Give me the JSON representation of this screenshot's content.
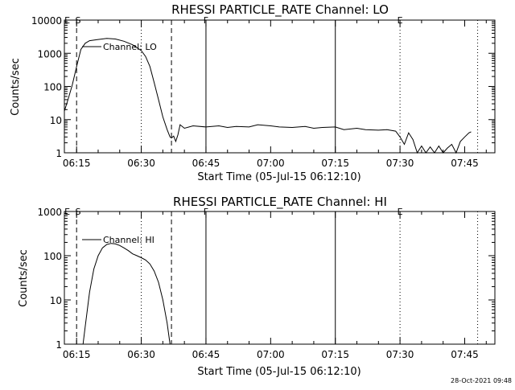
{
  "footer": {
    "timestamp": "28-Oct-2021 09:48"
  },
  "chart_data": [
    {
      "type": "line",
      "title": "RHESSI PARTICLE_RATE Channel: LO",
      "xlabel": "Start Time (05-Jul-15 06:12:10)",
      "ylabel": "Counts/sec",
      "y_scale": "log",
      "ylim": [
        1,
        10000
      ],
      "xlim": [
        "06:12:10",
        "07:52:00"
      ],
      "x_ticks": [
        "06:15",
        "06:30",
        "06:45",
        "07:00",
        "07:15",
        "07:30",
        "07:45"
      ],
      "y_ticks": [
        "1",
        "10",
        "100",
        "1000",
        "10000"
      ],
      "legend": {
        "entries": [
          "Channel: LO"
        ],
        "placement": "top-left"
      },
      "series": [
        {
          "name": "Channel: LO",
          "x": [
            "06:12:10",
            "06:13",
            "06:14",
            "06:15",
            "06:16",
            "06:17",
            "06:18",
            "06:20",
            "06:22",
            "06:24",
            "06:26",
            "06:28",
            "06:30",
            "06:31",
            "06:32",
            "06:33",
            "06:34",
            "06:35",
            "06:36",
            "06:36:40",
            "06:37",
            "06:37:30",
            "06:38",
            "06:38:30",
            "06:39",
            "06:40",
            "06:42",
            "06:45",
            "06:48",
            "06:50",
            "06:52",
            "06:55",
            "06:57",
            "07:00",
            "07:02",
            "07:05",
            "07:08",
            "07:10",
            "07:12",
            "07:15",
            "07:17",
            "07:20",
            "07:22",
            "07:25",
            "07:27",
            "07:29",
            "07:30",
            "07:31",
            "07:32",
            "07:33",
            "07:34",
            "07:35",
            "07:36",
            "07:37",
            "07:38",
            "07:39",
            "07:40",
            "07:41",
            "07:42",
            "07:43",
            "07:44",
            "07:45",
            "07:46",
            "07:46:30"
          ],
          "y": [
            18,
            40,
            110,
            400,
            1300,
            2000,
            2400,
            2600,
            2800,
            2700,
            2300,
            1800,
            1200,
            800,
            400,
            130,
            40,
            12,
            5,
            3,
            2.8,
            3.2,
            2.2,
            3.5,
            7,
            5.5,
            6.5,
            6,
            6.5,
            5.8,
            6.2,
            6,
            7,
            6.5,
            6,
            5.8,
            6.2,
            5.5,
            5.8,
            6,
            5,
            5.5,
            5,
            4.8,
            5,
            4.5,
            3,
            1.8,
            4,
            2.5,
            1,
            1.6,
            1,
            1.5,
            1,
            1.6,
            1,
            1.4,
            1.8,
            1,
            2.2,
            3,
            4,
            4.3
          ]
        }
      ],
      "vlines": [
        {
          "x": "06:15",
          "style": "dashed"
        },
        {
          "x": "06:30",
          "style": "dotted"
        },
        {
          "x": "06:37",
          "style": "dashed"
        },
        {
          "x": "06:45",
          "style": "solid"
        },
        {
          "x": "07:15",
          "style": "solid"
        },
        {
          "x": "07:30",
          "style": "dotted"
        },
        {
          "x": "07:48",
          "style": "dotted"
        }
      ],
      "markers": [
        {
          "label": "E",
          "x": "06:12:50"
        },
        {
          "label": "S",
          "x": "06:15:20"
        },
        {
          "label": "F",
          "x": "06:45"
        },
        {
          "label": "E",
          "x": "07:30"
        }
      ]
    },
    {
      "type": "line",
      "title": "RHESSI PARTICLE_RATE Channel: HI",
      "xlabel": "Start Time (05-Jul-15 06:12:10)",
      "ylabel": "Counts/sec",
      "y_scale": "log",
      "ylim": [
        1,
        1000
      ],
      "xlim": [
        "06:12:10",
        "07:52:00"
      ],
      "x_ticks": [
        "06:15",
        "06:30",
        "06:45",
        "07:00",
        "07:15",
        "07:30",
        "07:45"
      ],
      "y_ticks": [
        "1",
        "10",
        "100",
        "1000"
      ],
      "legend": {
        "entries": [
          "Channel: HI"
        ],
        "placement": "top-left"
      },
      "series": [
        {
          "name": "Channel: HI",
          "x": [
            "06:16:30",
            "06:17",
            "06:18",
            "06:19",
            "06:20",
            "06:21",
            "06:22",
            "06:23",
            "06:24",
            "06:25",
            "06:26",
            "06:27",
            "06:28",
            "06:29",
            "06:30",
            "06:31",
            "06:32",
            "06:33",
            "06:34",
            "06:35",
            "06:36",
            "06:36:40"
          ],
          "y": [
            1,
            2.5,
            15,
            50,
            100,
            150,
            180,
            190,
            185,
            170,
            150,
            130,
            110,
            100,
            90,
            80,
            65,
            45,
            25,
            10,
            3,
            1
          ]
        }
      ],
      "vlines": [
        {
          "x": "06:15",
          "style": "dashed"
        },
        {
          "x": "06:30",
          "style": "dotted"
        },
        {
          "x": "06:37",
          "style": "dashed"
        },
        {
          "x": "06:45",
          "style": "solid"
        },
        {
          "x": "07:15",
          "style": "solid"
        },
        {
          "x": "07:30",
          "style": "dotted"
        },
        {
          "x": "07:48",
          "style": "dotted"
        }
      ],
      "markers": [
        {
          "label": "E",
          "x": "06:12:50"
        },
        {
          "label": "S",
          "x": "06:15:20"
        },
        {
          "label": "F",
          "x": "06:45"
        },
        {
          "label": "E",
          "x": "07:30"
        }
      ]
    }
  ]
}
